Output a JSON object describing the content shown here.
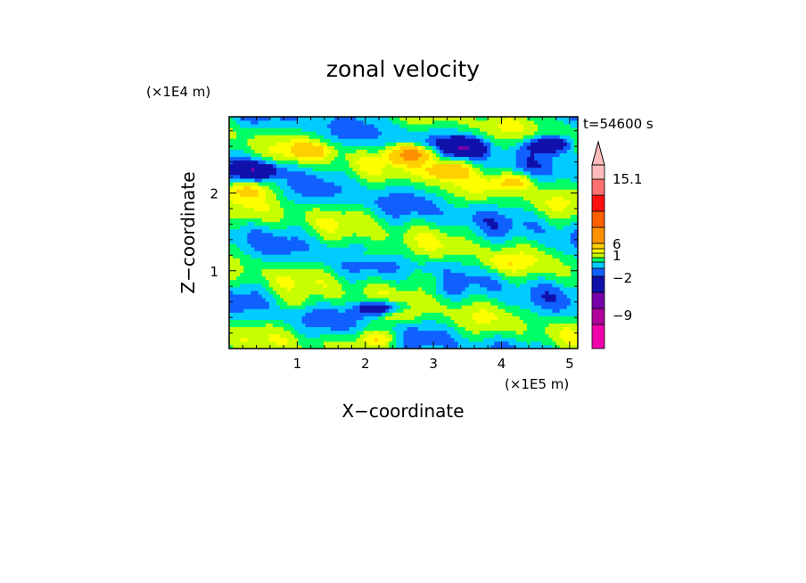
{
  "chart_data": {
    "type": "heatmap",
    "title": "zonal velocity",
    "xlabel": "X−coordinate",
    "ylabel": "Z−coordinate",
    "x_unit": "(×1E5 m)",
    "y_unit": "(×1E4 m)",
    "time_label": "t=54600 s",
    "xlim": [
      0,
      5.12
    ],
    "ylim": [
      0,
      2.98
    ],
    "x_ticks": [
      {
        "value": 1,
        "label": "1"
      },
      {
        "value": 2,
        "label": "2"
      },
      {
        "value": 3,
        "label": "3"
      },
      {
        "value": 4,
        "label": "4"
      },
      {
        "value": 5,
        "label": "5"
      }
    ],
    "y_ticks": [
      {
        "value": 1,
        "label": "1"
      },
      {
        "value": 2,
        "label": "2"
      }
    ],
    "colorbar": {
      "levels": [
        -12,
        -9,
        -6,
        -2,
        -1,
        0,
        1,
        2,
        3,
        6,
        9,
        12,
        15.1
      ],
      "labels": [
        {
          "value": 15.1,
          "label": "15.1"
        },
        {
          "value": 6,
          "label": "6"
        },
        {
          "value": 1,
          "label": "1"
        },
        {
          "value": -2,
          "label": "−2"
        },
        {
          "value": -9,
          "label": "−9"
        }
      ],
      "colors": [
        "#ee00aa",
        "#b00099",
        "#7700aa",
        "#1010aa",
        "#1060ff",
        "#00ccff",
        "#00ff66",
        "#c8ff00",
        "#ffff00",
        "#ffd000",
        "#ff9000",
        "#ff6000",
        "#ff1010",
        "#ff7070",
        "#ffbbbb"
      ],
      "extend_max": true
    },
    "field_features": [
      {
        "x": 2.7,
        "z": 2.5,
        "value": 8
      },
      {
        "x": 3.2,
        "z": 2.3,
        "value": 5
      },
      {
        "x": 1.2,
        "z": 2.55,
        "value": 3
      },
      {
        "x": 4.2,
        "z": 2.15,
        "value": 3
      },
      {
        "x": 0.3,
        "z": 2.05,
        "value": 3
      },
      {
        "x": 3.45,
        "z": 2.6,
        "value": -5
      },
      {
        "x": 4.7,
        "z": 2.63,
        "value": -5
      },
      {
        "x": 0.42,
        "z": 2.3,
        "value": -5
      },
      {
        "x": 2.25,
        "z": 0.5,
        "value": -8
      },
      {
        "x": 2.35,
        "z": 0.45,
        "value": 5
      },
      {
        "x": 2.2,
        "z": 0.15,
        "value": 3
      },
      {
        "x": 2.0,
        "z": 1.2,
        "value": 1.5
      },
      {
        "x": 4.0,
        "z": 1.1,
        "value": 1.2
      },
      {
        "x": 1.0,
        "z": 0.6,
        "value": 1.2
      },
      {
        "x": 3.0,
        "z": 0.9,
        "value": 1.3
      }
    ]
  }
}
